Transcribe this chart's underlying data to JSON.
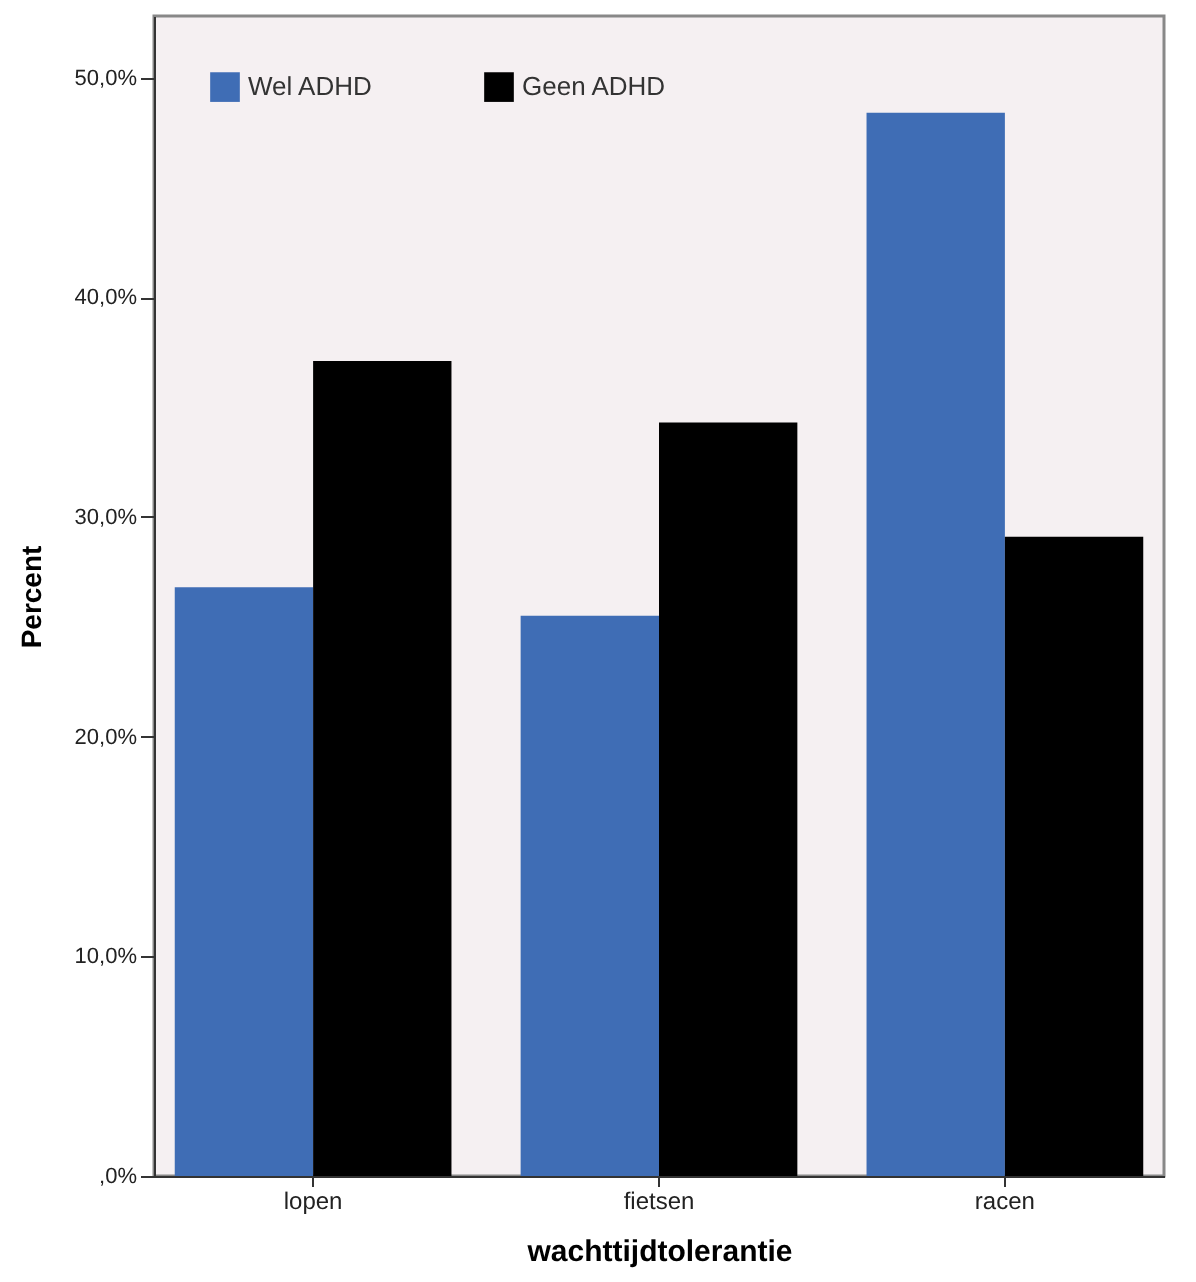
{
  "chart_data": {
    "type": "bar",
    "xlabel": "wachttijdtolerantie",
    "ylabel": "Percent",
    "categories": [
      "lopen",
      "fietsen",
      "racen"
    ],
    "series": [
      {
        "name": "Wel ADHD",
        "color": "#3f6db5",
        "values": [
          26.8,
          25.5,
          48.4
        ]
      },
      {
        "name": "Geen ADHD",
        "color": "#000000",
        "values": [
          37.1,
          34.3,
          29.1
        ]
      }
    ],
    "ylim": [
      0,
      52.8
    ],
    "yticks": [
      {
        "value": 0,
        "label": ",0%"
      },
      {
        "value": 10,
        "label": "10,0%"
      },
      {
        "value": 20,
        "label": "20,0%"
      },
      {
        "value": 30,
        "label": "30,0%"
      },
      {
        "value": 40,
        "label": "40,0%"
      },
      {
        "value": 50,
        "label": "50,0%"
      }
    ],
    "grid": false,
    "legend": "top left"
  }
}
